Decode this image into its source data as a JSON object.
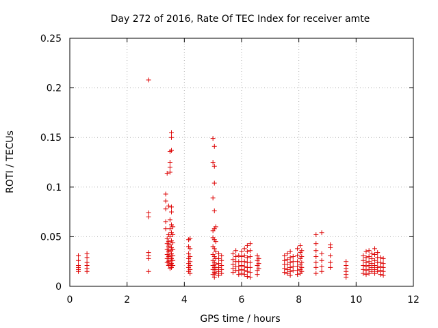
{
  "chart_data": {
    "type": "scatter",
    "title": "Day 272 of 2016, Rate Of TEC Index for receiver amte",
    "xlabel": "GPS time / hours",
    "ylabel": "ROTI / TECUs",
    "xlim": [
      0,
      12
    ],
    "ylim": [
      0,
      0.25
    ],
    "x_ticks": [
      0,
      2,
      4,
      6,
      8,
      10,
      12
    ],
    "x_tick_labels": [
      "0",
      "2",
      "4",
      "6",
      "8",
      "10",
      "12"
    ],
    "y_ticks": [
      0,
      0.05,
      0.1,
      0.15,
      0.2,
      0.25
    ],
    "y_tick_labels": [
      "0",
      "0.05",
      "0.1",
      "0.15",
      "0.2",
      "0.25"
    ],
    "grid": true,
    "marker": "+",
    "series": [
      {
        "name": "ROTI",
        "color": "#dd0000",
        "points": [
          [
            0.3,
            0.031
          ],
          [
            0.3,
            0.026
          ],
          [
            0.3,
            0.021
          ],
          [
            0.3,
            0.019
          ],
          [
            0.3,
            0.017
          ],
          [
            0.3,
            0.015
          ],
          [
            0.6,
            0.033
          ],
          [
            0.6,
            0.029
          ],
          [
            0.6,
            0.024
          ],
          [
            0.6,
            0.021
          ],
          [
            0.6,
            0.018
          ],
          [
            0.6,
            0.015
          ],
          [
            2.75,
            0.208
          ],
          [
            2.75,
            0.074
          ],
          [
            2.75,
            0.07
          ],
          [
            2.75,
            0.034
          ],
          [
            2.75,
            0.031
          ],
          [
            2.75,
            0.028
          ],
          [
            2.75,
            0.015
          ],
          [
            3.35,
            0.093
          ],
          [
            3.35,
            0.086
          ],
          [
            3.35,
            0.078
          ],
          [
            3.35,
            0.065
          ],
          [
            3.35,
            0.058
          ],
          [
            3.4,
            0.114
          ],
          [
            3.4,
            0.048
          ],
          [
            3.4,
            0.043
          ],
          [
            3.4,
            0.037
          ],
          [
            3.4,
            0.032
          ],
          [
            3.4,
            0.028
          ],
          [
            3.4,
            0.024
          ],
          [
            3.45,
            0.081
          ],
          [
            3.45,
            0.052
          ],
          [
            3.45,
            0.045
          ],
          [
            3.45,
            0.04
          ],
          [
            3.45,
            0.035
          ],
          [
            3.45,
            0.03
          ],
          [
            3.45,
            0.025
          ],
          [
            3.45,
            0.021
          ],
          [
            3.5,
            0.136
          ],
          [
            3.5,
            0.125
          ],
          [
            3.5,
            0.12
          ],
          [
            3.5,
            0.115
          ],
          [
            3.5,
            0.067
          ],
          [
            3.5,
            0.058
          ],
          [
            3.5,
            0.05
          ],
          [
            3.5,
            0.042
          ],
          [
            3.5,
            0.036
          ],
          [
            3.5,
            0.031
          ],
          [
            3.5,
            0.026
          ],
          [
            3.5,
            0.022
          ],
          [
            3.5,
            0.018
          ],
          [
            3.55,
            0.155
          ],
          [
            3.55,
            0.15
          ],
          [
            3.55,
            0.137
          ],
          [
            3.55,
            0.08
          ],
          [
            3.55,
            0.075
          ],
          [
            3.55,
            0.062
          ],
          [
            3.55,
            0.054
          ],
          [
            3.55,
            0.046
          ],
          [
            3.55,
            0.039
          ],
          [
            3.55,
            0.033
          ],
          [
            3.55,
            0.028
          ],
          [
            3.55,
            0.023
          ],
          [
            3.55,
            0.019
          ],
          [
            3.6,
            0.06
          ],
          [
            3.6,
            0.052
          ],
          [
            3.6,
            0.044
          ],
          [
            3.6,
            0.037
          ],
          [
            3.6,
            0.031
          ],
          [
            3.6,
            0.026
          ],
          [
            3.6,
            0.021
          ],
          [
            4.15,
            0.047
          ],
          [
            4.15,
            0.04
          ],
          [
            4.15,
            0.033
          ],
          [
            4.15,
            0.028
          ],
          [
            4.15,
            0.023
          ],
          [
            4.15,
            0.019
          ],
          [
            4.15,
            0.015
          ],
          [
            4.2,
            0.048
          ],
          [
            4.2,
            0.038
          ],
          [
            4.2,
            0.03
          ],
          [
            4.2,
            0.025
          ],
          [
            4.2,
            0.021
          ],
          [
            4.2,
            0.017
          ],
          [
            4.2,
            0.013
          ],
          [
            5.0,
            0.149
          ],
          [
            5.0,
            0.125
          ],
          [
            5.0,
            0.089
          ],
          [
            5.0,
            0.056
          ],
          [
            5.0,
            0.049
          ],
          [
            5.0,
            0.04
          ],
          [
            5.0,
            0.032
          ],
          [
            5.0,
            0.026
          ],
          [
            5.0,
            0.021
          ],
          [
            5.0,
            0.017
          ],
          [
            5.0,
            0.012
          ],
          [
            5.05,
            0.141
          ],
          [
            5.05,
            0.121
          ],
          [
            5.05,
            0.104
          ],
          [
            5.05,
            0.076
          ],
          [
            5.05,
            0.058
          ],
          [
            5.05,
            0.047
          ],
          [
            5.05,
            0.038
          ],
          [
            5.05,
            0.03
          ],
          [
            5.05,
            0.024
          ],
          [
            5.05,
            0.019
          ],
          [
            5.05,
            0.014
          ],
          [
            5.05,
            0.009
          ],
          [
            5.1,
            0.06
          ],
          [
            5.1,
            0.045
          ],
          [
            5.1,
            0.035
          ],
          [
            5.1,
            0.028
          ],
          [
            5.1,
            0.022
          ],
          [
            5.1,
            0.017
          ],
          [
            5.1,
            0.013
          ],
          [
            5.2,
            0.033
          ],
          [
            5.2,
            0.028
          ],
          [
            5.2,
            0.023
          ],
          [
            5.2,
            0.019
          ],
          [
            5.2,
            0.015
          ],
          [
            5.2,
            0.011
          ],
          [
            5.3,
            0.031
          ],
          [
            5.3,
            0.026
          ],
          [
            5.3,
            0.021
          ],
          [
            5.3,
            0.017
          ],
          [
            5.3,
            0.013
          ],
          [
            5.7,
            0.033
          ],
          [
            5.7,
            0.027
          ],
          [
            5.7,
            0.022
          ],
          [
            5.7,
            0.018
          ],
          [
            5.7,
            0.014
          ],
          [
            5.8,
            0.036
          ],
          [
            5.8,
            0.03
          ],
          [
            5.8,
            0.025
          ],
          [
            5.8,
            0.02
          ],
          [
            5.8,
            0.016
          ],
          [
            5.9,
            0.031
          ],
          [
            5.9,
            0.025
          ],
          [
            5.9,
            0.02
          ],
          [
            5.9,
            0.016
          ],
          [
            5.9,
            0.012
          ],
          [
            6.0,
            0.035
          ],
          [
            6.0,
            0.03
          ],
          [
            6.0,
            0.025
          ],
          [
            6.0,
            0.021
          ],
          [
            6.0,
            0.017
          ],
          [
            6.0,
            0.013
          ],
          [
            6.1,
            0.038
          ],
          [
            6.1,
            0.031
          ],
          [
            6.1,
            0.025
          ],
          [
            6.1,
            0.02
          ],
          [
            6.1,
            0.016
          ],
          [
            6.1,
            0.012
          ],
          [
            6.2,
            0.041
          ],
          [
            6.2,
            0.035
          ],
          [
            6.2,
            0.029
          ],
          [
            6.2,
            0.024
          ],
          [
            6.2,
            0.019
          ],
          [
            6.2,
            0.015
          ],
          [
            6.2,
            0.01
          ],
          [
            6.3,
            0.043
          ],
          [
            6.3,
            0.036
          ],
          [
            6.3,
            0.03
          ],
          [
            6.3,
            0.024
          ],
          [
            6.3,
            0.019
          ],
          [
            6.3,
            0.014
          ],
          [
            6.3,
            0.009
          ],
          [
            6.55,
            0.031
          ],
          [
            6.55,
            0.026
          ],
          [
            6.55,
            0.021
          ],
          [
            6.55,
            0.016
          ],
          [
            6.55,
            0.012
          ],
          [
            6.6,
            0.028
          ],
          [
            6.6,
            0.023
          ],
          [
            6.6,
            0.018
          ],
          [
            7.5,
            0.031
          ],
          [
            7.5,
            0.026
          ],
          [
            7.5,
            0.022
          ],
          [
            7.5,
            0.018
          ],
          [
            7.5,
            0.014
          ],
          [
            7.6,
            0.033
          ],
          [
            7.6,
            0.027
          ],
          [
            7.6,
            0.022
          ],
          [
            7.6,
            0.017
          ],
          [
            7.6,
            0.013
          ],
          [
            7.7,
            0.035
          ],
          [
            7.7,
            0.029
          ],
          [
            7.7,
            0.024
          ],
          [
            7.7,
            0.019
          ],
          [
            7.7,
            0.015
          ],
          [
            7.7,
            0.011
          ],
          [
            7.8,
            0.03
          ],
          [
            7.8,
            0.025
          ],
          [
            7.8,
            0.02
          ],
          [
            7.8,
            0.016
          ],
          [
            7.95,
            0.038
          ],
          [
            7.95,
            0.031
          ],
          [
            7.95,
            0.025
          ],
          [
            7.95,
            0.02
          ],
          [
            7.95,
            0.016
          ],
          [
            7.95,
            0.012
          ],
          [
            8.05,
            0.041
          ],
          [
            8.05,
            0.034
          ],
          [
            8.05,
            0.028
          ],
          [
            8.05,
            0.022
          ],
          [
            8.05,
            0.017
          ],
          [
            8.05,
            0.013
          ],
          [
            8.1,
            0.036
          ],
          [
            8.1,
            0.03
          ],
          [
            8.1,
            0.024
          ],
          [
            8.1,
            0.019
          ],
          [
            8.1,
            0.015
          ],
          [
            8.6,
            0.052
          ],
          [
            8.6,
            0.043
          ],
          [
            8.6,
            0.036
          ],
          [
            8.6,
            0.03
          ],
          [
            8.6,
            0.024
          ],
          [
            8.6,
            0.019
          ],
          [
            8.6,
            0.013
          ],
          [
            8.8,
            0.054
          ],
          [
            8.8,
            0.033
          ],
          [
            8.8,
            0.026
          ],
          [
            8.8,
            0.02
          ],
          [
            8.8,
            0.015
          ],
          [
            9.1,
            0.042
          ],
          [
            9.1,
            0.039
          ],
          [
            9.1,
            0.031
          ],
          [
            9.1,
            0.024
          ],
          [
            9.1,
            0.019
          ],
          [
            9.65,
            0.025
          ],
          [
            9.65,
            0.021
          ],
          [
            9.65,
            0.018
          ],
          [
            9.65,
            0.015
          ],
          [
            9.65,
            0.012
          ],
          [
            9.65,
            0.009
          ],
          [
            10.25,
            0.031
          ],
          [
            10.25,
            0.026
          ],
          [
            10.25,
            0.021
          ],
          [
            10.25,
            0.017
          ],
          [
            10.25,
            0.013
          ],
          [
            10.35,
            0.035
          ],
          [
            10.35,
            0.029
          ],
          [
            10.35,
            0.024
          ],
          [
            10.35,
            0.02
          ],
          [
            10.35,
            0.016
          ],
          [
            10.35,
            0.012
          ],
          [
            10.45,
            0.036
          ],
          [
            10.45,
            0.03
          ],
          [
            10.45,
            0.025
          ],
          [
            10.45,
            0.021
          ],
          [
            10.45,
            0.017
          ],
          [
            10.45,
            0.013
          ],
          [
            10.55,
            0.033
          ],
          [
            10.55,
            0.028
          ],
          [
            10.55,
            0.023
          ],
          [
            10.55,
            0.019
          ],
          [
            10.55,
            0.015
          ],
          [
            10.65,
            0.038
          ],
          [
            10.65,
            0.032
          ],
          [
            10.65,
            0.026
          ],
          [
            10.65,
            0.021
          ],
          [
            10.65,
            0.017
          ],
          [
            10.65,
            0.013
          ],
          [
            10.75,
            0.034
          ],
          [
            10.75,
            0.029
          ],
          [
            10.75,
            0.024
          ],
          [
            10.75,
            0.019
          ],
          [
            10.75,
            0.015
          ],
          [
            10.85,
            0.029
          ],
          [
            10.85,
            0.024
          ],
          [
            10.85,
            0.02
          ],
          [
            10.85,
            0.016
          ],
          [
            10.85,
            0.012
          ],
          [
            10.95,
            0.028
          ],
          [
            10.95,
            0.023
          ],
          [
            10.95,
            0.019
          ],
          [
            10.95,
            0.015
          ],
          [
            10.95,
            0.011
          ]
        ]
      }
    ]
  }
}
